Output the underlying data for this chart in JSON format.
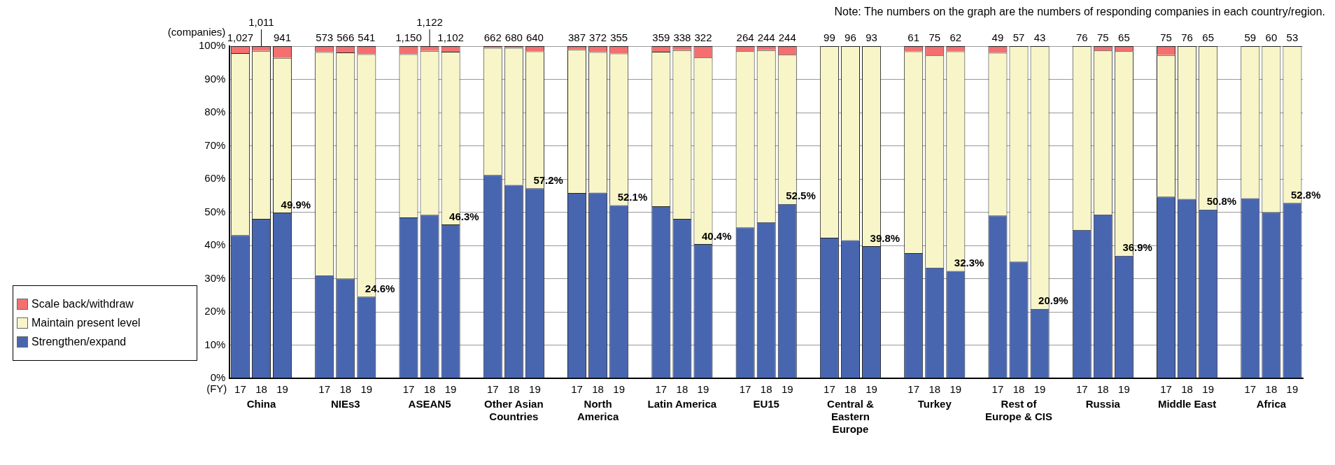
{
  "chart_data": {
    "type": "bar",
    "stacked": true,
    "categories": [
      "17",
      "18",
      "19",
      null,
      "17",
      "18",
      "19",
      null,
      "17",
      "18",
      "19",
      null,
      "17",
      "18",
      "19",
      null,
      "17",
      "18",
      "19",
      null,
      "17",
      "18",
      "19",
      null,
      "17",
      "18",
      "19",
      null,
      "17",
      "18",
      "19",
      null,
      "17",
      "18",
      "19",
      null,
      "17",
      "18",
      "19",
      null,
      "17",
      "18",
      "19",
      null,
      "17",
      "18",
      "19",
      null,
      "17",
      "18",
      "19"
    ],
    "series": [
      {
        "name": "Strengthen/expand",
        "color": "#4866b0",
        "values": [
          43.1,
          48.0,
          49.9,
          null,
          31.0,
          30.0,
          24.6,
          null,
          48.4,
          49.2,
          46.3,
          null,
          61.2,
          58.2,
          57.2,
          null,
          55.8,
          55.9,
          52.1,
          null,
          51.8,
          48.0,
          40.4,
          null,
          45.4,
          47.0,
          52.5,
          null,
          42.3,
          41.6,
          39.8,
          null,
          37.7,
          33.3,
          32.3,
          null,
          49.0,
          35.1,
          20.9,
          null,
          44.7,
          49.3,
          36.9,
          null,
          54.7,
          54.0,
          50.8,
          null,
          54.2,
          50.0,
          52.8
        ],
        "value_labels": [
          null,
          null,
          "49.9%",
          null,
          null,
          null,
          "24.6%",
          null,
          null,
          null,
          "46.3%",
          null,
          null,
          null,
          "57.2%",
          null,
          null,
          null,
          "52.1%",
          null,
          null,
          null,
          "40.4%",
          null,
          null,
          null,
          "52.5%",
          null,
          null,
          null,
          "39.8%",
          null,
          null,
          null,
          "32.3%",
          null,
          null,
          null,
          "20.9%",
          null,
          null,
          null,
          "36.9%",
          null,
          null,
          null,
          "50.8%",
          null,
          null,
          null,
          "52.8%"
        ]
      },
      {
        "name": "Maintain present level",
        "color": "#f8f6c8",
        "values": [
          54.8,
          50.6,
          46.6,
          null,
          67.2,
          68.1,
          73.0,
          null,
          49.2,
          49.4,
          52.0,
          null,
          38.3,
          41.3,
          41.2,
          null,
          43.2,
          42.3,
          45.7,
          null,
          46.5,
          50.8,
          56.2,
          null,
          53.1,
          51.8,
          44.9,
          null,
          57.7,
          58.4,
          60.2,
          null,
          60.7,
          63.9,
          66.1,
          null,
          49.0,
          64.9,
          79.1,
          null,
          55.3,
          49.4,
          61.6,
          null,
          42.6,
          46.0,
          49.2,
          null,
          45.8,
          50.0,
          47.2
        ]
      },
      {
        "name": "Scale back/withdraw",
        "color": "#f47070",
        "values": [
          2.1,
          1.4,
          3.5,
          null,
          1.8,
          1.9,
          2.4,
          null,
          2.4,
          1.4,
          1.7,
          null,
          0.5,
          0.5,
          1.6,
          null,
          1.0,
          1.8,
          2.2,
          null,
          1.7,
          1.2,
          3.4,
          null,
          1.5,
          1.2,
          2.6,
          null,
          0,
          0,
          0,
          null,
          1.6,
          2.8,
          1.6,
          null,
          2.0,
          0,
          0,
          null,
          0,
          1.3,
          1.5,
          null,
          2.7,
          0,
          0,
          null,
          0,
          0,
          0
        ]
      }
    ],
    "ylim": [
      0,
      100
    ],
    "yticks": [
      {
        "value": 0,
        "label": "0%"
      },
      {
        "value": 10,
        "label": "10%"
      },
      {
        "value": 20,
        "label": "20%"
      },
      {
        "value": 30,
        "label": "30%"
      },
      {
        "value": 40,
        "label": "40%"
      },
      {
        "value": 50,
        "label": "50%"
      },
      {
        "value": 60,
        "label": "60%"
      },
      {
        "value": 70,
        "label": "70%"
      },
      {
        "value": 80,
        "label": "80%"
      },
      {
        "value": 90,
        "label": "90%"
      },
      {
        "value": 100,
        "label": "100%"
      }
    ],
    "grid": "y",
    "legend": "left",
    "annotations": [
      "Note: The numbers on the graph are the numbers of responding companies in each country/region.",
      "(companies)",
      "(FY)",
      "China",
      "NIEs3",
      "ASEAN5",
      "Other Asian Countries",
      "North America",
      "Latin America",
      "EU15",
      "Central & Eastern Europe",
      "Turkey",
      "Rest of Europe & CIS",
      "Russia",
      "Middle East",
      "Africa",
      "1,027",
      "1,011",
      "941",
      "573",
      "566",
      "541",
      "1,150",
      "1,122",
      "1,102",
      "662",
      "680",
      "640",
      "387",
      "372",
      "355",
      "359",
      "338",
      "322",
      "264",
      "244",
      "244",
      "99",
      "96",
      "93",
      "61",
      "75",
      "62",
      "49",
      "57",
      "43",
      "76",
      "75",
      "65",
      "75",
      "76",
      "65",
      "59",
      "60",
      "53"
    ]
  }
}
